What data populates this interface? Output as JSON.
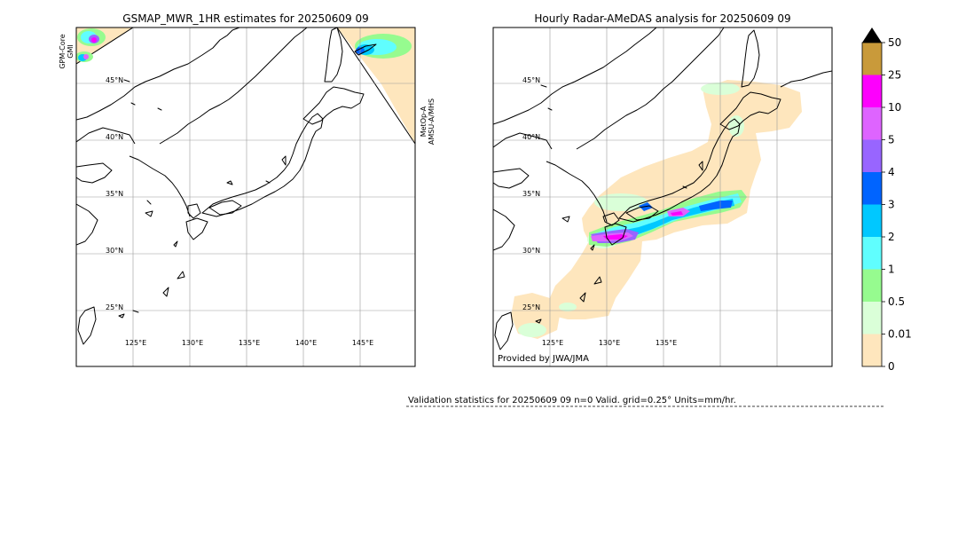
{
  "left_panel": {
    "title": "GSMAP_MWR_1HR estimates for 20250609 09",
    "sensor_left": [
      "GPM-Core",
      "GMI"
    ],
    "sensor_right": [
      "MetOp-A",
      "AMSU-A/MHS"
    ],
    "lat_labels": [
      "45°N",
      "40°N",
      "35°N",
      "30°N",
      "25°N"
    ],
    "lon_labels": [
      "125°E",
      "130°E",
      "135°E",
      "140°E",
      "145°E"
    ]
  },
  "right_panel": {
    "title": "Hourly Radar-AMeDAS analysis for 20250609 09",
    "lat_labels": [
      "45°N",
      "40°N",
      "35°N",
      "30°N",
      "25°N"
    ],
    "lon_labels": [
      "125°E",
      "130°E",
      "135°E"
    ],
    "credit": "Provided by JWA/JMA"
  },
  "colorbar": {
    "labels": [
      "0",
      "0.01",
      "0.5",
      "1",
      "2",
      "3",
      "4",
      "5",
      "10",
      "25",
      "50"
    ],
    "colors": [
      "#fee6bd",
      "#daffd8",
      "#96fb8f",
      "#60fefe",
      "#00c8ff",
      "#0064ff",
      "#9865ff",
      "#de64ff",
      "#fd00fd",
      "#c99a3a"
    ],
    "extend_color": "#000000"
  },
  "stats": {
    "text": "Validation statistics for 20250609 09  n=0 Valid. grid=0.25° Units=mm/hr."
  }
}
